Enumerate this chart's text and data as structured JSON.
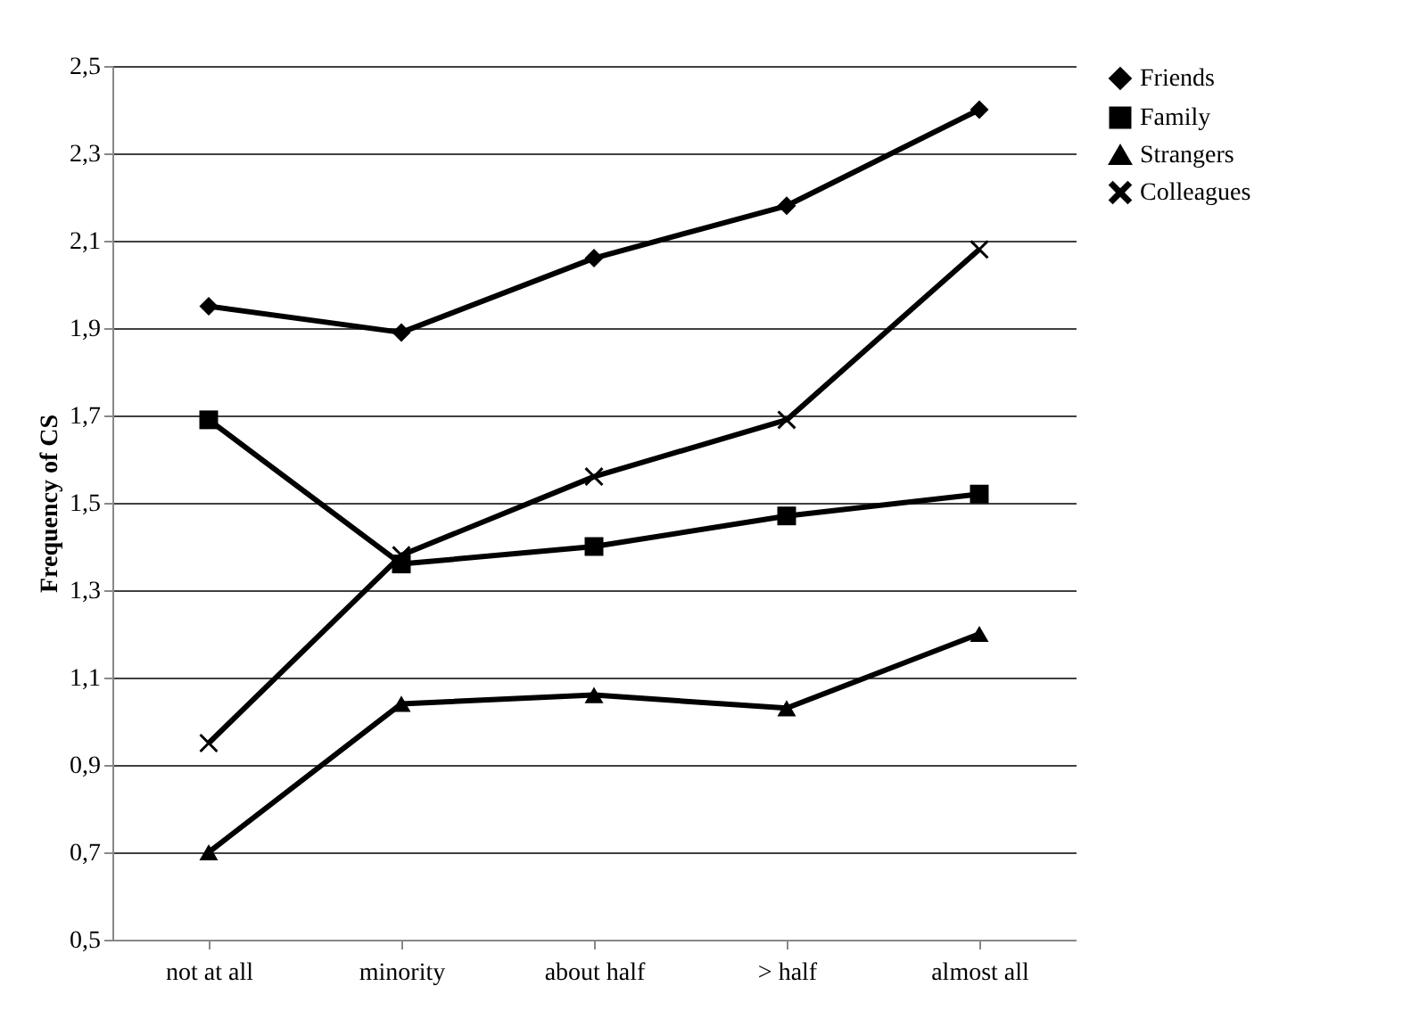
{
  "chart_data": {
    "type": "line",
    "ylabel": "Frequency of CS",
    "categories": [
      "not at all",
      "minority",
      "about half",
      "> half",
      "almost all"
    ],
    "series": [
      {
        "name": "Friends",
        "color": "#000000",
        "marker": "diamond",
        "values": [
          1.95,
          1.89,
          2.06,
          2.18,
          2.4
        ]
      },
      {
        "name": "Family",
        "color": "#000000",
        "marker": "square",
        "values": [
          1.69,
          1.36,
          1.4,
          1.47,
          1.52
        ]
      },
      {
        "name": "Strangers",
        "color": "#000000",
        "marker": "triangle",
        "values": [
          0.7,
          1.04,
          1.06,
          1.03,
          1.2
        ]
      },
      {
        "name": "Colleagues",
        "color": "#000000",
        "marker": "cross",
        "values": [
          0.95,
          1.38,
          1.56,
          1.69,
          2.08
        ]
      }
    ],
    "ylim": [
      0.5,
      2.5
    ],
    "yticks": [
      {
        "value": 0.5,
        "label": "0,5"
      },
      {
        "value": 0.7,
        "label": "0,7"
      },
      {
        "value": 0.9,
        "label": "0,9"
      },
      {
        "value": 1.1,
        "label": "1,1"
      },
      {
        "value": 1.3,
        "label": "1,3"
      },
      {
        "value": 1.5,
        "label": "1,5"
      },
      {
        "value": 1.7,
        "label": "1,7"
      },
      {
        "value": 1.9,
        "label": "1,9"
      },
      {
        "value": 2.1,
        "label": "2,1"
      },
      {
        "value": 2.3,
        "label": "2,3"
      },
      {
        "value": 2.5,
        "label": "2,5"
      }
    ],
    "grid": "y",
    "legend": "right",
    "line_style": "solid"
  }
}
